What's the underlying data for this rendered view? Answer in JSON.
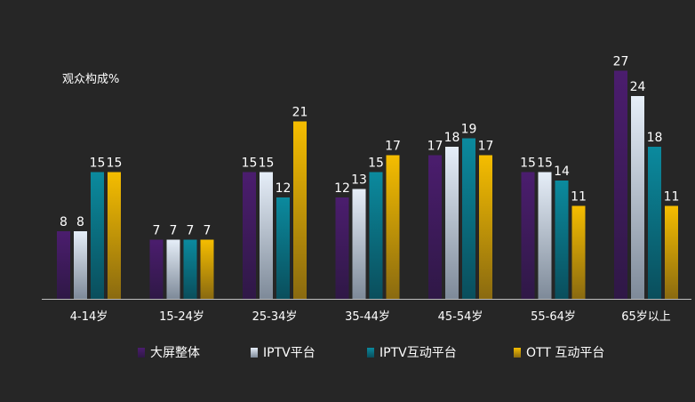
{
  "chart_data": {
    "type": "bar",
    "ylabel": "观众构成%",
    "xlabel": "",
    "categories": [
      "4-14岁",
      "15-24岁",
      "25-34岁",
      "35-44岁",
      "45-54岁",
      "55-64岁",
      "65岁以上"
    ],
    "series": [
      {
        "name": "大屏整体",
        "values": [
          8,
          7,
          15,
          12,
          17,
          15,
          27
        ],
        "color_top": "#4b1d6e",
        "color_bottom": "#2f1846"
      },
      {
        "name": "IPTV平台",
        "values": [
          8,
          7,
          15,
          13,
          18,
          15,
          24
        ],
        "color_top": "#e6eef8",
        "color_bottom": "#7e8a99"
      },
      {
        "name": "IPTV互动平台",
        "values": [
          15,
          7,
          12,
          15,
          19,
          14,
          18
        ],
        "color_top": "#0b8a9e",
        "color_bottom": "#0a4e5c"
      },
      {
        "name": "OTT 互动平台",
        "values": [
          15,
          7,
          21,
          17,
          17,
          11,
          11
        ],
        "color_top": "#f5bd00",
        "color_bottom": "#8a6a10"
      }
    ],
    "ylim": [
      0,
      30
    ],
    "grid": false,
    "legend_position": "bottom"
  }
}
